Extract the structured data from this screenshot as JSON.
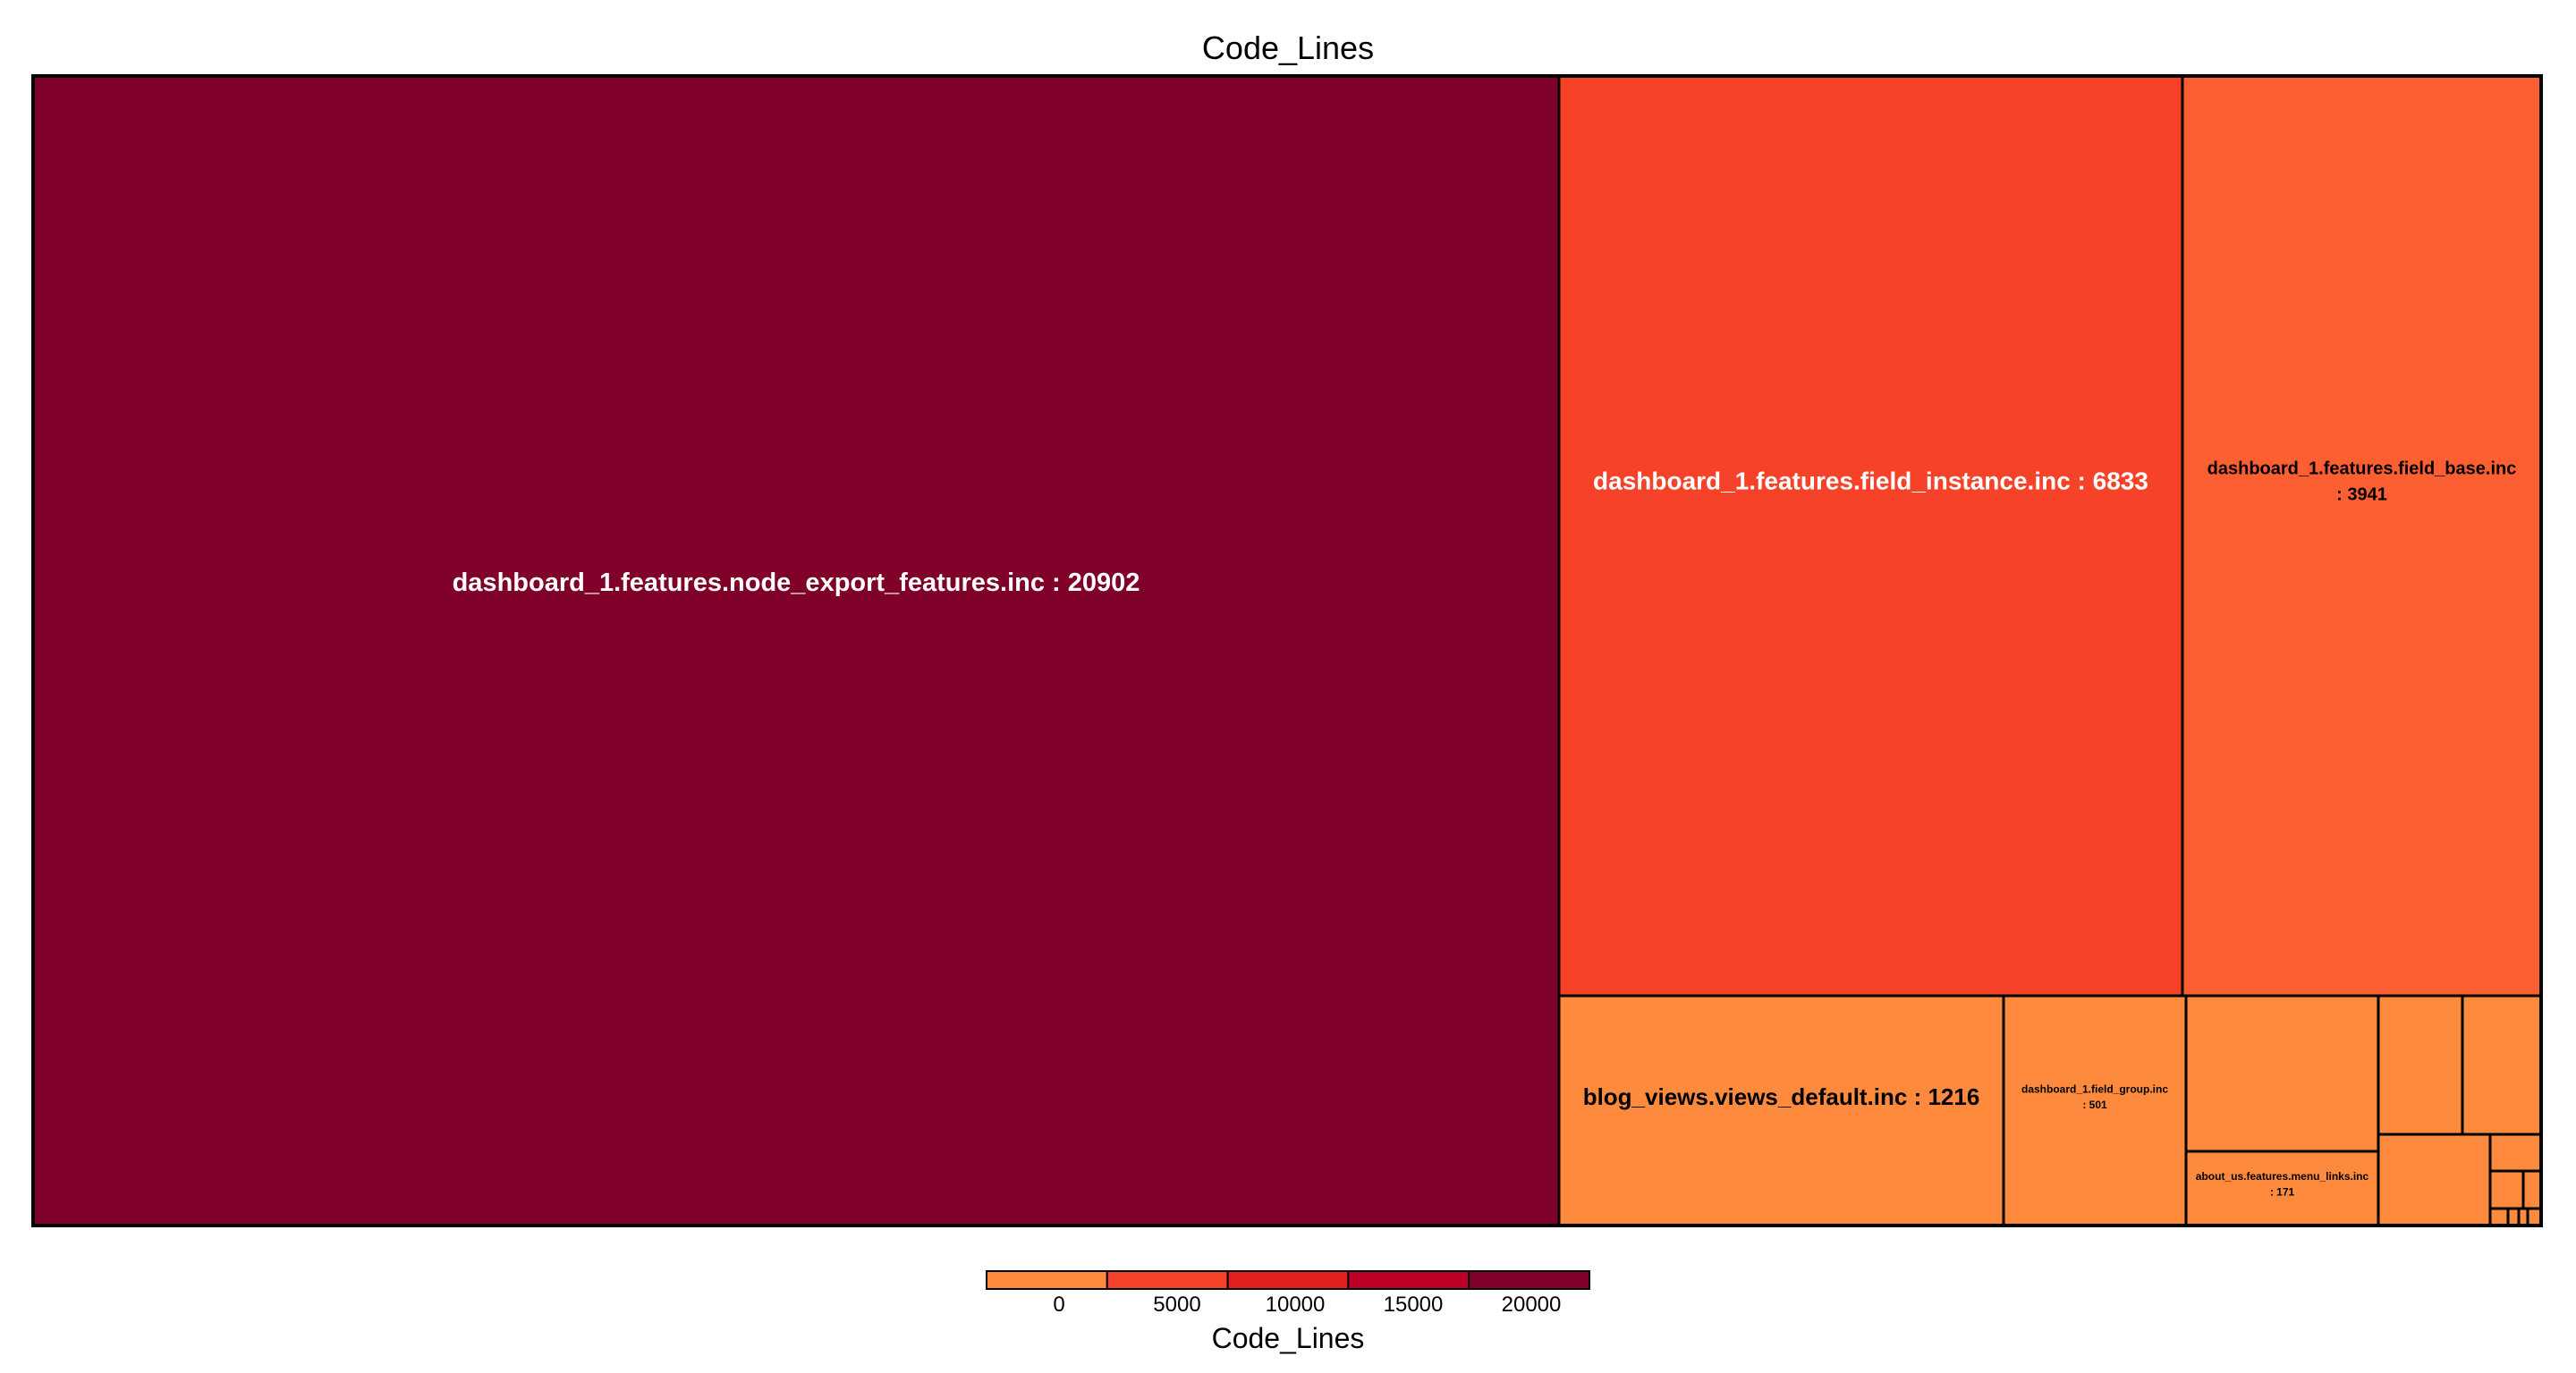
{
  "chart_data": {
    "type": "treemap",
    "title": "Code_Lines",
    "value_field": "Code_Lines",
    "items": [
      {
        "name": "dashboard_1.features.node_export_features.inc",
        "value": 20902,
        "label": "dashboard_1.features.node_export_features.inc : 20902",
        "color": "#7f0028",
        "text_color": "#ffffff"
      },
      {
        "name": "dashboard_1.features.field_instance.inc",
        "value": 6833,
        "label": "dashboard_1.features.field_instance.inc : 6833",
        "color": "#f54229",
        "text_color": "#ffffff"
      },
      {
        "name": "dashboard_1.features.field_base.inc",
        "value": 3941,
        "label_lines": [
          "dashboard_1.features.field_base.inc",
          ": 3941"
        ],
        "color": "#fb5f32",
        "text_color": "#000000"
      },
      {
        "name": "blog_views.views_default.inc",
        "value": 1216,
        "label": "blog_views.views_default.inc : 1216",
        "color": "#fd8a3d",
        "text_color": "#000000"
      },
      {
        "name": "dashboard_1.field_group.inc",
        "value": 501,
        "label_lines": [
          "dashboard_1.field_group.inc",
          ": 501"
        ],
        "color": "#fd8a3d",
        "text_color": "#000000"
      },
      {
        "name": "about_us.features.menu_links.inc",
        "value": 171,
        "label_lines": [
          "about_us.features.menu_links.inc",
          ": 171"
        ],
        "color": "#fd8a3d",
        "text_color": "#000000"
      }
    ],
    "legend": {
      "title": "Code_Lines",
      "ticks": [
        "0",
        "5000",
        "10000",
        "15000",
        "20000"
      ],
      "tick_values": [
        0,
        5000,
        10000,
        15000,
        20000
      ],
      "range": [
        0,
        25000
      ],
      "colors": [
        "#fd8a3d",
        "#f54229",
        "#e11f1f",
        "#bd0026",
        "#7f0028"
      ],
      "placement": "bottom"
    }
  }
}
